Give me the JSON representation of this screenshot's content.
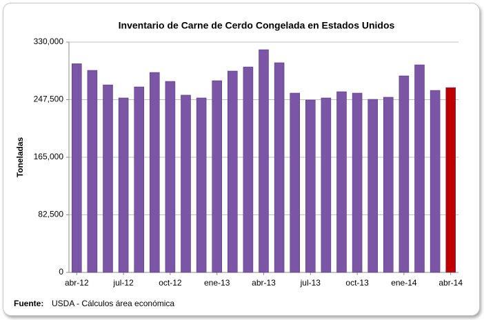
{
  "chart_data": {
    "type": "bar",
    "title": "Inventario de Carne de Cerdo Congelada en Estados Unidos",
    "y_label": "Toneladas",
    "source_label": "Fuente:",
    "source": "USDA - Cálculos área económica",
    "categories": [
      "abr-12",
      null,
      null,
      "jul-12",
      null,
      null,
      "oct-12",
      null,
      null,
      "ene-13",
      null,
      null,
      "abr-13",
      null,
      null,
      "jul-13",
      null,
      null,
      "oct-13",
      null,
      null,
      "ene-14",
      null,
      null,
      "abr-14"
    ],
    "values": [
      299000,
      289500,
      268700,
      250000,
      265800,
      286500,
      273700,
      254000,
      250000,
      274700,
      288500,
      294400,
      319100,
      300400,
      256900,
      247000,
      250000,
      258900,
      256900,
      248000,
      251000,
      281600,
      297400,
      260800,
      264800
    ],
    "colors": [
      "#7b55a6",
      "#7b55a6",
      "#7b55a6",
      "#7b55a6",
      "#7b55a6",
      "#7b55a6",
      "#7b55a6",
      "#7b55a6",
      "#7b55a6",
      "#7b55a6",
      "#7b55a6",
      "#7b55a6",
      "#7b55a6",
      "#7b55a6",
      "#7b55a6",
      "#7b55a6",
      "#7b55a6",
      "#7b55a6",
      "#7b55a6",
      "#7b55a6",
      "#7b55a6",
      "#7b55a6",
      "#7b55a6",
      "#7b55a6",
      "#c00000"
    ],
    "ylim": [
      0,
      330000
    ],
    "yticks": [
      0,
      {
        "value": 82500,
        "label": "82,500"
      },
      {
        "value": 165000,
        "label": "165,000"
      },
      {
        "value": 247500,
        "label": "247,500"
      },
      {
        "value": 330000,
        "label": "330,000"
      }
    ],
    "grid": true
  }
}
